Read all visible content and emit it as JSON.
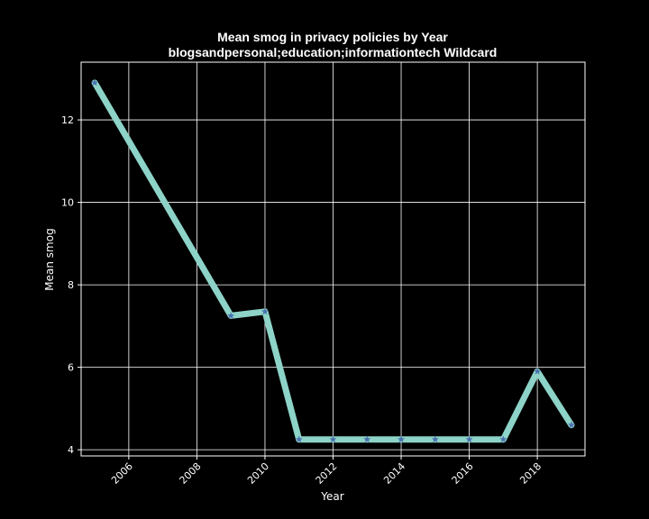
{
  "chart_data": {
    "type": "line",
    "title": "Mean smog in privacy policies by Year",
    "subtitle": "blogsandpersonal;education;informationtech Wildcard",
    "xlabel": "Year",
    "ylabel": "Mean smog",
    "xlim": [
      2004.6,
      2019.4
    ],
    "ylim": [
      3.85,
      13.4
    ],
    "xticks": [
      2006,
      2008,
      2010,
      2012,
      2014,
      2016,
      2018
    ],
    "yticks": [
      4,
      6,
      8,
      10,
      12
    ],
    "grid": true,
    "legend": "none",
    "background": "#000000",
    "line_color": "#8dd3c7",
    "marker_color": "#4c72b0",
    "marker": "star",
    "series": [
      {
        "x": [
          2005,
          2009,
          2010,
          2011,
          2012,
          2013,
          2014,
          2015,
          2016,
          2017,
          2018,
          2019
        ],
        "values": [
          12.9,
          7.25,
          7.35,
          4.25,
          4.25,
          4.25,
          4.25,
          4.25,
          4.25,
          4.25,
          5.9,
          4.6
        ]
      }
    ]
  }
}
